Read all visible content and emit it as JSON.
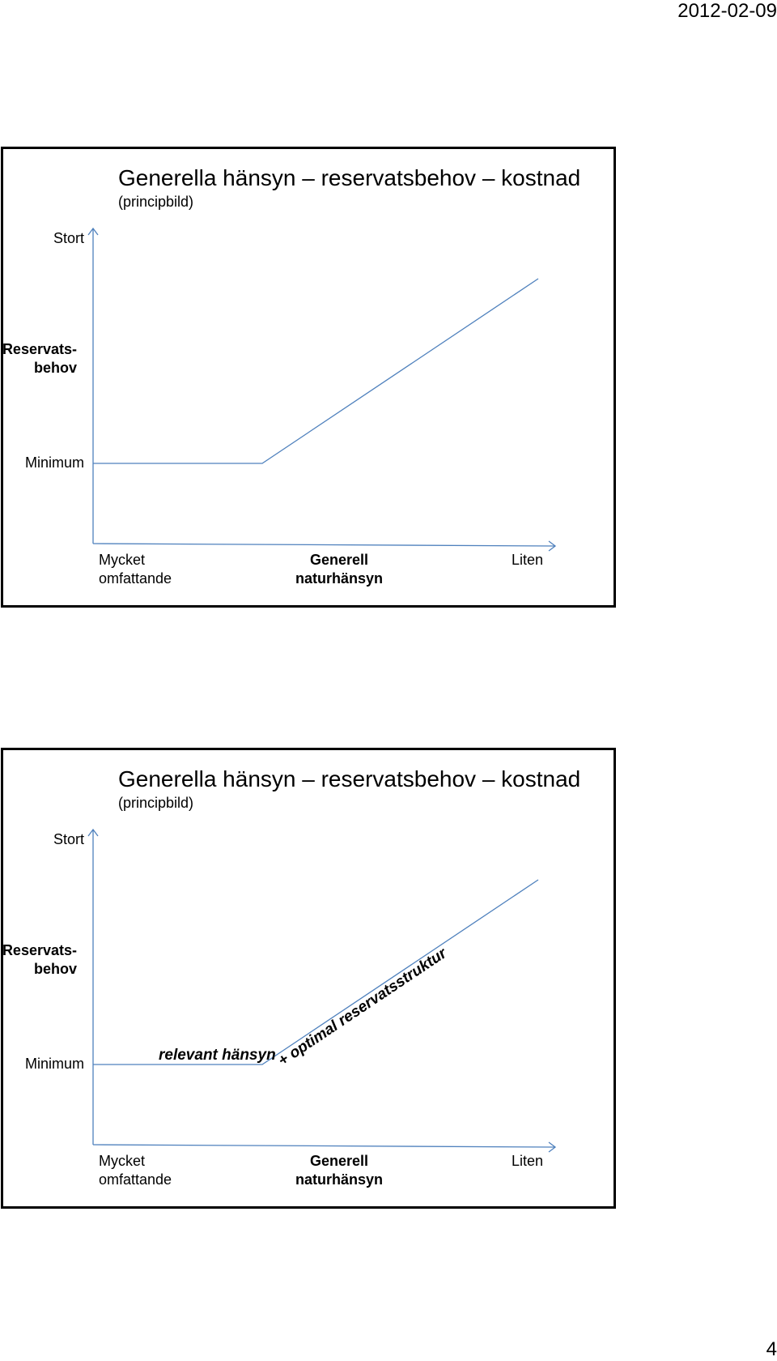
{
  "header": {
    "date": "2012-02-09"
  },
  "footer": {
    "page_number": "4"
  },
  "slides": [
    {
      "title": "Generella hänsyn – reservatsbehov – kostnad",
      "subtitle": "(principbild)",
      "y_top_label": "Stort",
      "y_axis_label_line1": "Reservats-",
      "y_axis_label_line2": "behov",
      "y_min_label": "Minimum",
      "x_left_label_line1": "Mycket",
      "x_left_label_line2": "omfattande",
      "x_axis_label_line1": "Generell",
      "x_axis_label_line2": "naturhänsyn",
      "x_right_label": "Liten"
    },
    {
      "title": "Generella hänsyn – reservatsbehov – kostnad",
      "subtitle": "(principbild)",
      "y_top_label": "Stort",
      "y_axis_label_line1": "Reservats-",
      "y_axis_label_line2": "behov",
      "y_min_label": "Minimum",
      "x_left_label_line1": "Mycket",
      "x_left_label_line2": "omfattande",
      "x_axis_label_line1": "Generell",
      "x_axis_label_line2": "naturhänsyn",
      "x_right_label": "Liten",
      "annotation_flat": "relevant hänsyn",
      "annotation_slope": "+ optimal reservatsstruktur"
    }
  ],
  "style": {
    "line_color": "#4f81bd",
    "axis_color": "#4f81bd"
  }
}
